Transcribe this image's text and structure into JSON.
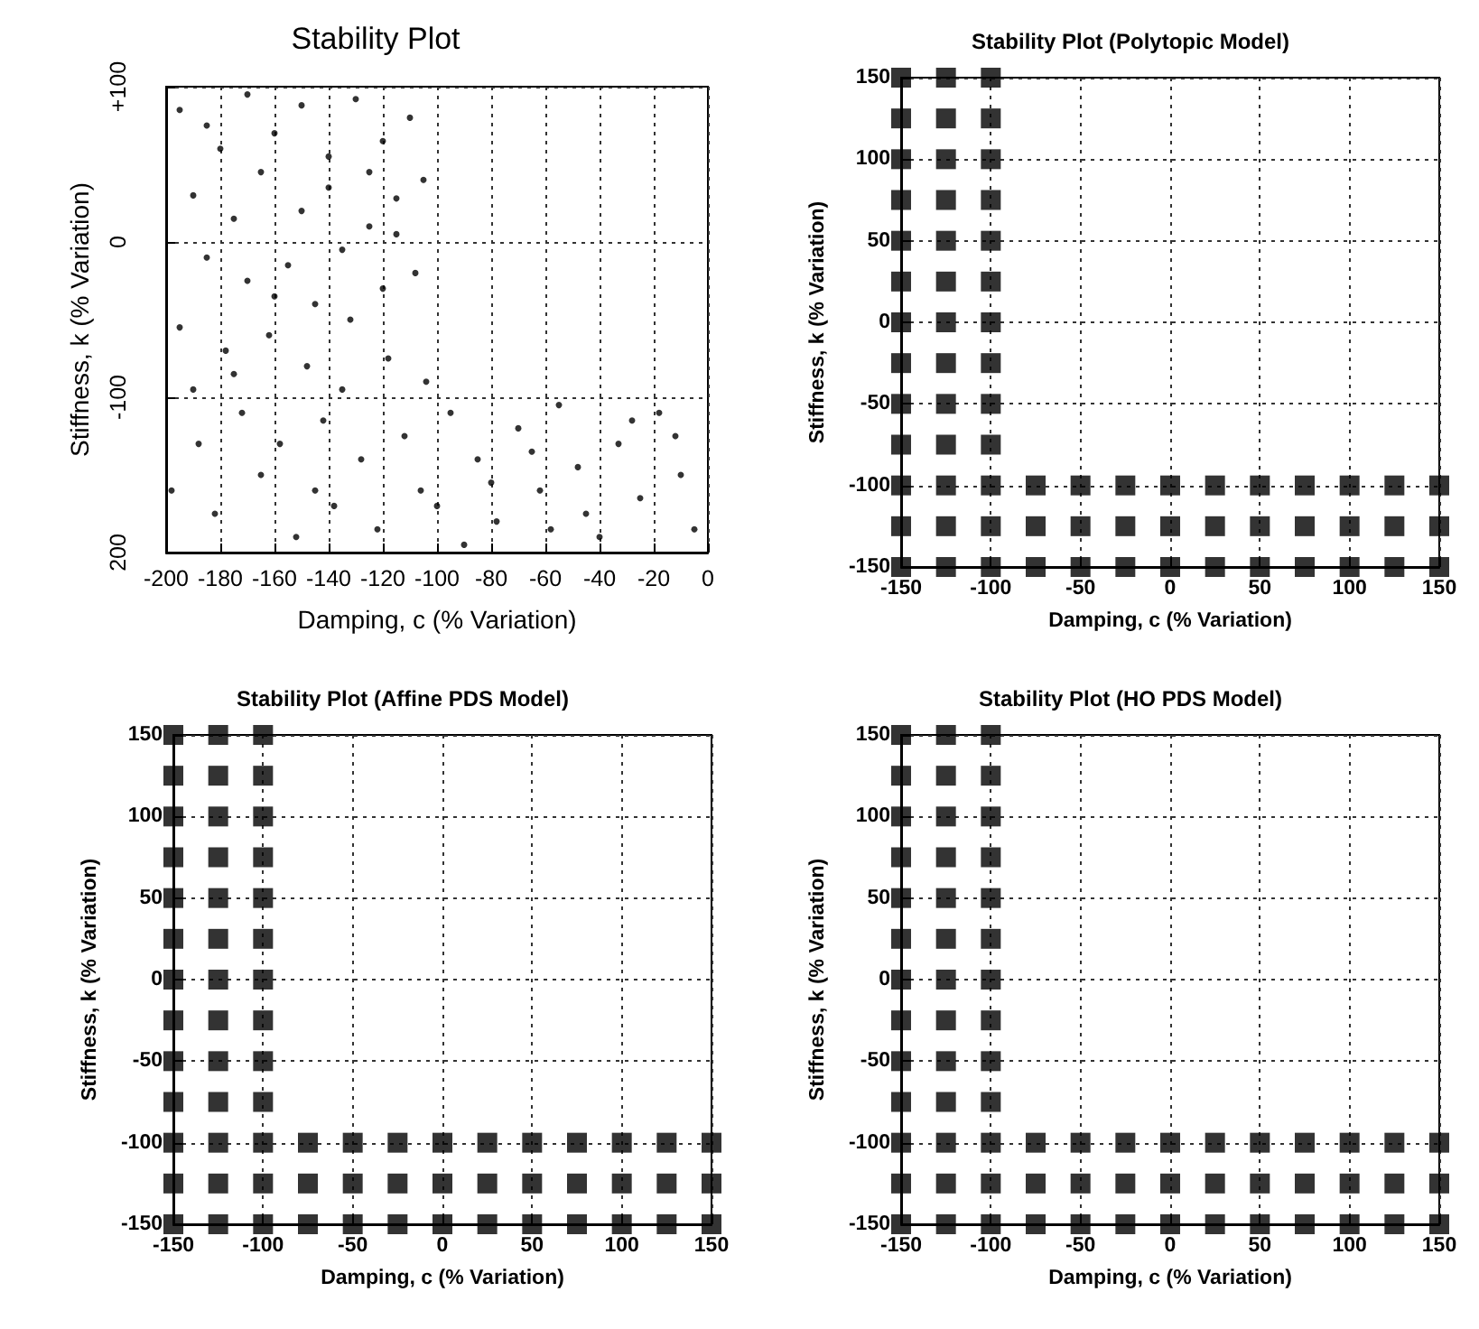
{
  "chart_data": [
    {
      "type": "scatter",
      "title": "Stability Plot",
      "xlabel": "Damping, c (% Variation)",
      "ylabel": "Stiffness, k (% Variation)",
      "color": "#000000",
      "marker": "circle",
      "grid": true,
      "xlim": [
        -200,
        0
      ],
      "ylim": [
        -200,
        100
      ],
      "xticks": [
        -200,
        -180,
        -160,
        -140,
        -120,
        -100,
        -80,
        -60,
        -40,
        -20,
        0
      ],
      "yticks": [
        {
          "value": -200,
          "label": "200"
        },
        -100,
        0,
        {
          "value": 100,
          "label": "+100"
        }
      ],
      "x": [
        -195,
        -180,
        -170,
        -160,
        -150,
        -140,
        -130,
        -120,
        -110,
        -105,
        -190,
        -175,
        -165,
        -150,
        -140,
        -125,
        -115,
        -185,
        -170,
        -155,
        -145,
        -135,
        -120,
        -108,
        -195,
        -178,
        -162,
        -148,
        -132,
        -118,
        -104,
        -190,
        -172,
        -158,
        -142,
        -128,
        -112,
        -198,
        -182,
        -165,
        -152,
        -138,
        -122,
        -106,
        -95,
        -85,
        -78,
        -70,
        -62,
        -55,
        -48,
        -40,
        -33,
        -25,
        -18,
        -10,
        -5,
        -90,
        -65,
        -45,
        -28,
        -12,
        -80,
        -58,
        -185,
        -125,
        -160,
        -115,
        -175,
        -135,
        -188,
        -145,
        -100
      ],
      "values": [
        85,
        60,
        95,
        70,
        88,
        55,
        92,
        65,
        80,
        40,
        30,
        15,
        45,
        20,
        35,
        10,
        28,
        -10,
        -25,
        -15,
        -40,
        -5,
        -30,
        -20,
        -55,
        -70,
        -60,
        -80,
        -50,
        -75,
        -90,
        -95,
        -110,
        -130,
        -115,
        -140,
        -125,
        -160,
        -175,
        -150,
        -190,
        -170,
        -185,
        -160,
        -110,
        -140,
        -180,
        -120,
        -160,
        -105,
        -145,
        -190,
        -130,
        -165,
        -110,
        -150,
        -185,
        -195,
        -135,
        -175,
        -115,
        -125,
        -155,
        -185,
        75,
        45,
        -35,
        5,
        -85,
        -95,
        -130,
        -160,
        -170
      ]
    },
    {
      "type": "scatter",
      "title": "Stability Plot (Polytopic Model)",
      "xlabel": "Damping, c (% Variation)",
      "ylabel": "Stiffness, k (% Variation)",
      "color": "#000000",
      "marker": "square",
      "grid": true,
      "xlim": [
        -150,
        150
      ],
      "ylim": [
        -150,
        150
      ],
      "xticks": [
        -150,
        -100,
        -50,
        0,
        50,
        100,
        150
      ],
      "yticks": [
        -150,
        -100,
        -50,
        0,
        50,
        100,
        150
      ],
      "x": [
        -150,
        -150,
        -150,
        -150,
        -150,
        -150,
        -150,
        -150,
        -150,
        -150,
        -150,
        -150,
        -150,
        -125,
        -125,
        -125,
        -125,
        -125,
        -125,
        -125,
        -125,
        -125,
        -125,
        -125,
        -125,
        -125,
        -100,
        -100,
        -100,
        -100,
        -100,
        -100,
        -100,
        -100,
        -100,
        -100,
        -100,
        -100,
        -100,
        -75,
        -75,
        -75,
        -50,
        -50,
        -50,
        -25,
        -25,
        -25,
        0,
        0,
        0,
        25,
        25,
        25,
        50,
        50,
        50,
        75,
        75,
        75,
        100,
        100,
        100,
        125,
        125,
        125,
        150,
        150,
        150
      ],
      "values": [
        -150,
        -125,
        -100,
        -75,
        -50,
        -25,
        0,
        25,
        50,
        75,
        100,
        125,
        150,
        -150,
        -125,
        -100,
        -75,
        -50,
        -25,
        0,
        25,
        50,
        75,
        100,
        125,
        150,
        -150,
        -125,
        -100,
        -75,
        -50,
        -25,
        0,
        25,
        50,
        75,
        100,
        125,
        150,
        -150,
        -125,
        -100,
        -150,
        -125,
        -100,
        -150,
        -125,
        -100,
        -150,
        -125,
        -100,
        -150,
        -125,
        -100,
        -150,
        -125,
        -100,
        -150,
        -125,
        -100,
        -150,
        -125,
        -100,
        -150,
        -125,
        -100,
        -150,
        -125,
        -100
      ]
    },
    {
      "type": "scatter",
      "title": "Stability Plot (Affine PDS Model)",
      "xlabel": "Damping, c (% Variation)",
      "ylabel": "Stiffness, k (% Variation)",
      "color": "#000000",
      "marker": "square",
      "grid": true,
      "xlim": [
        -150,
        150
      ],
      "ylim": [
        -150,
        150
      ],
      "xticks": [
        -150,
        -100,
        -50,
        0,
        50,
        100,
        150
      ],
      "yticks": [
        -150,
        -100,
        -50,
        0,
        50,
        100,
        150
      ],
      "x": [
        -150,
        -150,
        -150,
        -150,
        -150,
        -150,
        -150,
        -150,
        -150,
        -150,
        -150,
        -150,
        -150,
        -125,
        -125,
        -125,
        -125,
        -125,
        -125,
        -125,
        -125,
        -125,
        -125,
        -125,
        -125,
        -125,
        -100,
        -100,
        -100,
        -100,
        -100,
        -100,
        -100,
        -100,
        -100,
        -100,
        -100,
        -100,
        -100,
        -75,
        -75,
        -75,
        -50,
        -50,
        -50,
        -25,
        -25,
        -25,
        0,
        0,
        0,
        25,
        25,
        25,
        50,
        50,
        50,
        75,
        75,
        75,
        100,
        100,
        100,
        125,
        125,
        125,
        150,
        150,
        150
      ],
      "values": [
        -150,
        -125,
        -100,
        -75,
        -50,
        -25,
        0,
        25,
        50,
        75,
        100,
        125,
        150,
        -150,
        -125,
        -100,
        -75,
        -50,
        -25,
        0,
        25,
        50,
        75,
        100,
        125,
        150,
        -150,
        -125,
        -100,
        -75,
        -50,
        -25,
        0,
        25,
        50,
        75,
        100,
        125,
        150,
        -150,
        -125,
        -100,
        -150,
        -125,
        -100,
        -150,
        -125,
        -100,
        -150,
        -125,
        -100,
        -150,
        -125,
        -100,
        -150,
        -125,
        -100,
        -150,
        -125,
        -100,
        -150,
        -125,
        -100,
        -150,
        -125,
        -100,
        -150,
        -125,
        -100
      ]
    },
    {
      "type": "scatter",
      "title": "Stability Plot (HO PDS Model)",
      "xlabel": "Damping, c (% Variation)",
      "ylabel": "Stiffness, k (% Variation)",
      "color": "#000000",
      "marker": "square",
      "grid": true,
      "xlim": [
        -150,
        150
      ],
      "ylim": [
        -150,
        150
      ],
      "xticks": [
        -150,
        -100,
        -50,
        0,
        50,
        100,
        150
      ],
      "yticks": [
        -150,
        -100,
        -50,
        0,
        50,
        100,
        150
      ],
      "x": [
        -150,
        -150,
        -150,
        -150,
        -150,
        -150,
        -150,
        -150,
        -150,
        -150,
        -150,
        -150,
        -150,
        -125,
        -125,
        -125,
        -125,
        -125,
        -125,
        -125,
        -125,
        -125,
        -125,
        -125,
        -125,
        -125,
        -100,
        -100,
        -100,
        -100,
        -100,
        -100,
        -100,
        -100,
        -100,
        -100,
        -100,
        -100,
        -100,
        -75,
        -75,
        -75,
        -50,
        -50,
        -50,
        -25,
        -25,
        -25,
        0,
        0,
        0,
        25,
        25,
        25,
        50,
        50,
        50,
        75,
        75,
        75,
        100,
        100,
        100,
        125,
        125,
        125,
        150,
        150,
        150
      ],
      "values": [
        -150,
        -125,
        -100,
        -75,
        -50,
        -25,
        0,
        25,
        50,
        75,
        100,
        125,
        150,
        -150,
        -125,
        -100,
        -75,
        -50,
        -25,
        0,
        25,
        50,
        75,
        100,
        125,
        150,
        -150,
        -125,
        -100,
        -75,
        -50,
        -25,
        0,
        25,
        50,
        75,
        100,
        125,
        150,
        -150,
        -125,
        -100,
        -150,
        -125,
        -100,
        -150,
        -125,
        -100,
        -150,
        -125,
        -100,
        -150,
        -125,
        -100,
        -150,
        -125,
        -100,
        -150,
        -125,
        -100,
        -150,
        -125,
        -100,
        -150,
        -125,
        -100,
        -150,
        -125,
        -100
      ]
    }
  ]
}
